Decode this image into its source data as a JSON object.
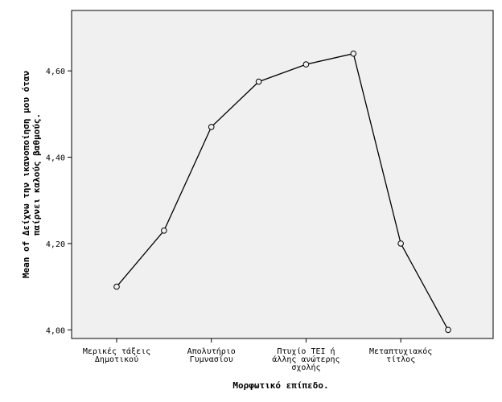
{
  "chart_data": {
    "type": "line",
    "title": "",
    "xlabel": "Μορφωτικό επίπεδο.",
    "ylabel": "Mean of Δείχνω την ικανοποίηση μου όταν παίρνει καλούς βαθμούς.",
    "ylabel_lines": [
      "Mean of Δείχνω την ικανοποίηση μου όταν",
      "παίρνει καλούς βαθμούς."
    ],
    "ylim": [
      3.98,
      4.74
    ],
    "yticks": [
      4.0,
      4.2,
      4.4,
      4.6
    ],
    "ytick_labels": [
      "4,00",
      "4,20",
      "4,40",
      "4,60"
    ],
    "x_count": 8,
    "x_ticks": [
      {
        "index": 0,
        "lines": [
          "Μερικές τάξεις",
          "Δημοτικού"
        ]
      },
      {
        "index": 2,
        "lines": [
          "Απολυτήριο",
          "Γυμνασίου"
        ]
      },
      {
        "index": 4,
        "lines": [
          "Πτυχίο ΤΕΙ ή",
          "άλλης ανώτερης",
          "σχολής"
        ]
      },
      {
        "index": 6,
        "lines": [
          "Μεταπτυχιακός",
          "τίτλος"
        ]
      }
    ],
    "values": [
      4.1,
      4.23,
      4.47,
      4.575,
      4.615,
      4.64,
      4.2,
      4.0
    ],
    "grid": false,
    "colors": {
      "plot_bg": "#f0f0f0",
      "line": "#000000",
      "marker_fill": "#f0f0f0"
    }
  }
}
